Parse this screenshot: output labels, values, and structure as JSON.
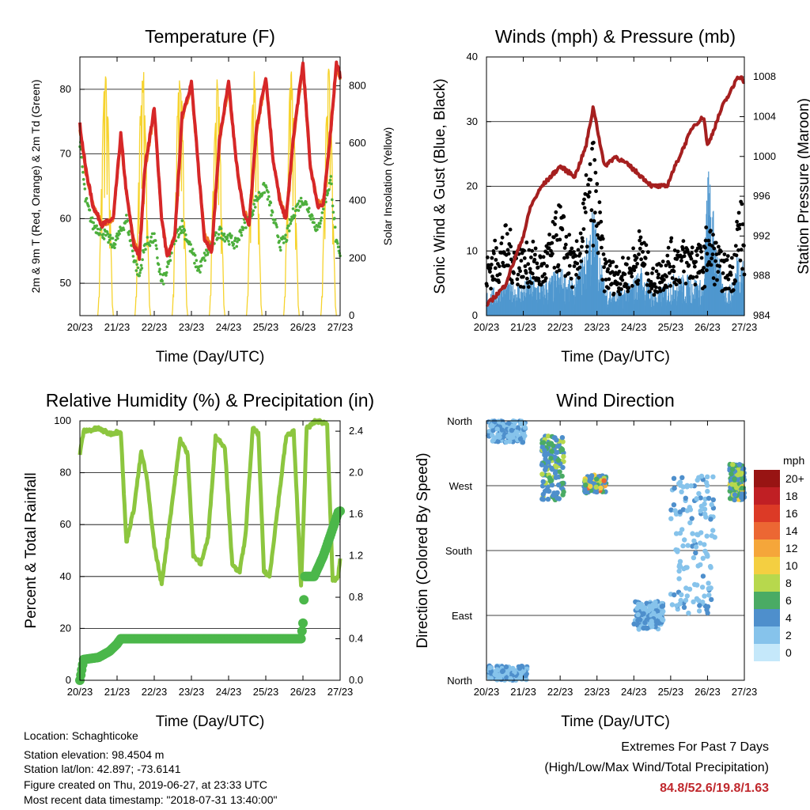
{
  "x_ticks": [
    "20/23",
    "21/23",
    "22/23",
    "23/23",
    "24/23",
    "25/23",
    "26/23",
    "27/23"
  ],
  "xlabel": "Time (Day/UTC)",
  "chart_data": [
    {
      "type": "line",
      "title": "Temperature (F)",
      "ylabel_left": "2m & 9m T (Red, Orange) & 2m Td (Green)",
      "ylabel_right": "Solar Insolation (Yellow)",
      "ylim": [
        45,
        85
      ],
      "yticks": [
        50,
        60,
        70,
        80
      ],
      "y2lim": [
        0,
        900
      ],
      "y2ticks": [
        0,
        200,
        400,
        600,
        800
      ],
      "x": [
        0,
        0.15,
        0.35,
        0.6,
        0.9,
        1.1,
        1.25,
        1.45,
        1.6,
        1.75,
        2.0,
        2.2,
        2.35,
        2.55,
        2.75,
        3.0,
        3.2,
        3.35,
        3.55,
        3.75,
        4.0,
        4.2,
        4.4,
        4.55,
        4.75,
        5.0,
        5.2,
        5.4,
        5.55,
        5.75,
        6.0,
        6.2,
        6.4,
        6.55,
        6.75,
        6.9,
        7.0
      ],
      "series": [
        {
          "name": "2m T",
          "color": "#d62728",
          "values": [
            74.5,
            68,
            62,
            59,
            60,
            73,
            64,
            56,
            54,
            68,
            77,
            60,
            54,
            57,
            76,
            81,
            67,
            57,
            55,
            72,
            81,
            69,
            61,
            59,
            74,
            82,
            69,
            62,
            60,
            73,
            84,
            68,
            62,
            62,
            74,
            84,
            82
          ]
        },
        {
          "name": "9m T",
          "color": "#f07a22",
          "values": [
            74,
            67.5,
            62,
            59,
            60,
            72.5,
            64,
            56.5,
            54.5,
            67.5,
            76.5,
            60,
            54.5,
            57,
            75.5,
            80.5,
            67,
            57.5,
            55.5,
            71.5,
            80.5,
            69,
            61.5,
            59.5,
            73.5,
            81.5,
            69,
            62.5,
            60.5,
            72.5,
            83.5,
            68,
            62.5,
            62.5,
            73.5,
            83.5,
            81.5
          ]
        },
        {
          "name": "2m Td",
          "color": "#4daf3c",
          "values": [
            72,
            63,
            59,
            58,
            56,
            58,
            60,
            54,
            51,
            56,
            57,
            50,
            52,
            57,
            59,
            55,
            52,
            54,
            56,
            58,
            57,
            56,
            59,
            60,
            63,
            65,
            60,
            56,
            57,
            61,
            63,
            61,
            58,
            62,
            66,
            56,
            54
          ]
        }
      ],
      "solar": {
        "name": "Solar Insolation",
        "color": "#f6d32d",
        "days": [
          0,
          1,
          2,
          3,
          4,
          5,
          6
        ],
        "peaks": [
          870,
          890,
          880,
          855,
          860,
          860,
          870
        ]
      }
    },
    {
      "type": "scatter",
      "title": "Winds (mph) & Pressure (mb)",
      "ylabel_left": "Sonic Wind & Gust (Blue, Black)",
      "ylabel_right": "Station Pressure (Maroon)",
      "ylim": [
        0,
        40
      ],
      "yticks": [
        0,
        10,
        20,
        30,
        40
      ],
      "y2lim": [
        984,
        1010
      ],
      "y2ticks": [
        984,
        988,
        992,
        996,
        1000,
        1004,
        1008
      ],
      "x": [
        0,
        0.5,
        1.0,
        1.2,
        1.5,
        2.0,
        2.4,
        2.7,
        2.9,
        3.2,
        3.5,
        3.9,
        4.2,
        4.5,
        4.9,
        5.0,
        5.6,
        5.9,
        6.0,
        6.4,
        6.7,
        6.8,
        6.9,
        7.0
      ],
      "series": [
        {
          "name": "Sonic Wind",
          "color": "#4f97cf",
          "values": [
            3,
            4,
            4,
            5,
            4,
            6,
            4,
            9,
            14,
            4,
            3,
            4,
            6,
            3,
            4,
            5,
            5,
            4,
            19,
            4,
            4,
            8,
            9,
            7
          ]
        },
        {
          "name": "Gust",
          "color": "#000000",
          "values": [
            8,
            12,
            9,
            10,
            8,
            15,
            8,
            18,
            24,
            8,
            7,
            8,
            12,
            6,
            9,
            10,
            10,
            9,
            13,
            8,
            8,
            14,
            16,
            12
          ]
        }
      ],
      "pressure": {
        "name": "Station Pressure",
        "color": "#a51f1f",
        "values": [
          985,
          987,
          992,
          995,
          997,
          999,
          998,
          1001,
          1005,
          999,
          1000,
          999,
          998,
          997,
          997,
          998,
          1003,
          1004,
          1001,
          1005,
          1007,
          1008,
          1008,
          1007.5
        ]
      }
    },
    {
      "type": "line",
      "title": "Relative Humidity (%) & Precipitation (in)",
      "ylabel_left": "Percent & Total Rainfall",
      "ylim": [
        0,
        100
      ],
      "yticks": [
        0,
        20,
        40,
        60,
        80,
        100
      ],
      "y2lim": [
        0,
        2.5
      ],
      "y2ticks": [
        "0.0",
        "0.4",
        "0.8",
        "1.2",
        "1.6",
        "2.0",
        "2.4"
      ],
      "x": [
        0,
        0.1,
        0.5,
        0.8,
        1.1,
        1.25,
        1.45,
        1.65,
        1.8,
        2.0,
        2.2,
        2.45,
        2.7,
        2.9,
        3.05,
        3.25,
        3.45,
        3.65,
        3.9,
        4.1,
        4.3,
        4.45,
        4.65,
        4.8,
        4.95,
        5.1,
        5.35,
        5.55,
        5.75,
        5.95,
        6.1,
        6.35,
        6.65,
        6.8,
        6.95,
        7.0
      ],
      "series": [
        {
          "name": "Relative Humidity",
          "color": "#8cc63f",
          "values": [
            87,
            96,
            97,
            95,
            96,
            53,
            66,
            88,
            78,
            52,
            37,
            65,
            93,
            87,
            48,
            45,
            55,
            94,
            90,
            44,
            42,
            55,
            97,
            95,
            42,
            40,
            70,
            94,
            96,
            36,
            97,
            100,
            99,
            38,
            40,
            47
          ]
        }
      ],
      "precip": {
        "name": "Total Precipitation",
        "color": "#4bb74a",
        "x": [
          0,
          0.05,
          0.1,
          0.5,
          0.8,
          1.0,
          1.1,
          5.95,
          6.0,
          6.05,
          6.3,
          6.55,
          6.95,
          7.0
        ],
        "values": [
          0,
          0.1,
          0.2,
          0.22,
          0.28,
          0.35,
          0.4,
          0.4,
          0.55,
          1.0,
          1.0,
          1.2,
          1.62,
          1.63
        ]
      }
    },
    {
      "type": "scatter",
      "title": "Wind Direction",
      "ylabel_left": "Direction (Colored By Speed)",
      "yticks": [
        "North",
        "East",
        "South",
        "West",
        "North"
      ],
      "legend_title": "mph",
      "legend_labels": [
        "0",
        "2",
        "4",
        "6",
        "8",
        "10",
        "12",
        "14",
        "16",
        "18",
        "20+"
      ],
      "legend_colors": [
        "#c5e8fa",
        "#86c3eb",
        "#4e8fcc",
        "#4aab64",
        "#b7d84d",
        "#f4cf41",
        "#f5a63a",
        "#ec6733",
        "#dc3a26",
        "#c01f24",
        "#981413"
      ],
      "clusters": [
        {
          "x": [
            0.05,
            1.05
          ],
          "dir": [
            330,
            360
          ],
          "speed": [
            2,
            5
          ]
        },
        {
          "x": [
            0.05,
            1.1
          ],
          "dir": [
            0,
            20
          ],
          "speed": [
            2,
            5
          ]
        },
        {
          "x": [
            1.5,
            2.1
          ],
          "dir": [
            250,
            340
          ],
          "speed": [
            3,
            9
          ]
        },
        {
          "x": [
            2.65,
            3.25
          ],
          "dir": [
            260,
            285
          ],
          "speed": [
            3,
            14
          ]
        },
        {
          "x": [
            4.0,
            4.8
          ],
          "dir": [
            70,
            110
          ],
          "speed": [
            2,
            5
          ]
        },
        {
          "x": [
            5.0,
            6.2
          ],
          "dir": [
            90,
            290
          ],
          "speed": [
            1,
            5
          ]
        },
        {
          "x": [
            6.6,
            7.0
          ],
          "dir": [
            250,
            300
          ],
          "speed": [
            4,
            10
          ]
        }
      ]
    }
  ],
  "info": {
    "location": "Location: Schaghticoke",
    "elevation": "Station elevation: 98.4504 m",
    "latlon": "Station lat/lon: 42.897; -73.6141",
    "created": "Figure created on Thu, 2019-06-27, at 23:33 UTC",
    "timestamp": "Most recent data timestamp: \"2018-07-31 13:40:00\""
  },
  "extremes": {
    "title": "Extremes For Past 7 Days",
    "subtitle": "(High/Low/Max Wind/Total Precipitation)",
    "values": "84.8/52.6/19.8/1.63"
  }
}
